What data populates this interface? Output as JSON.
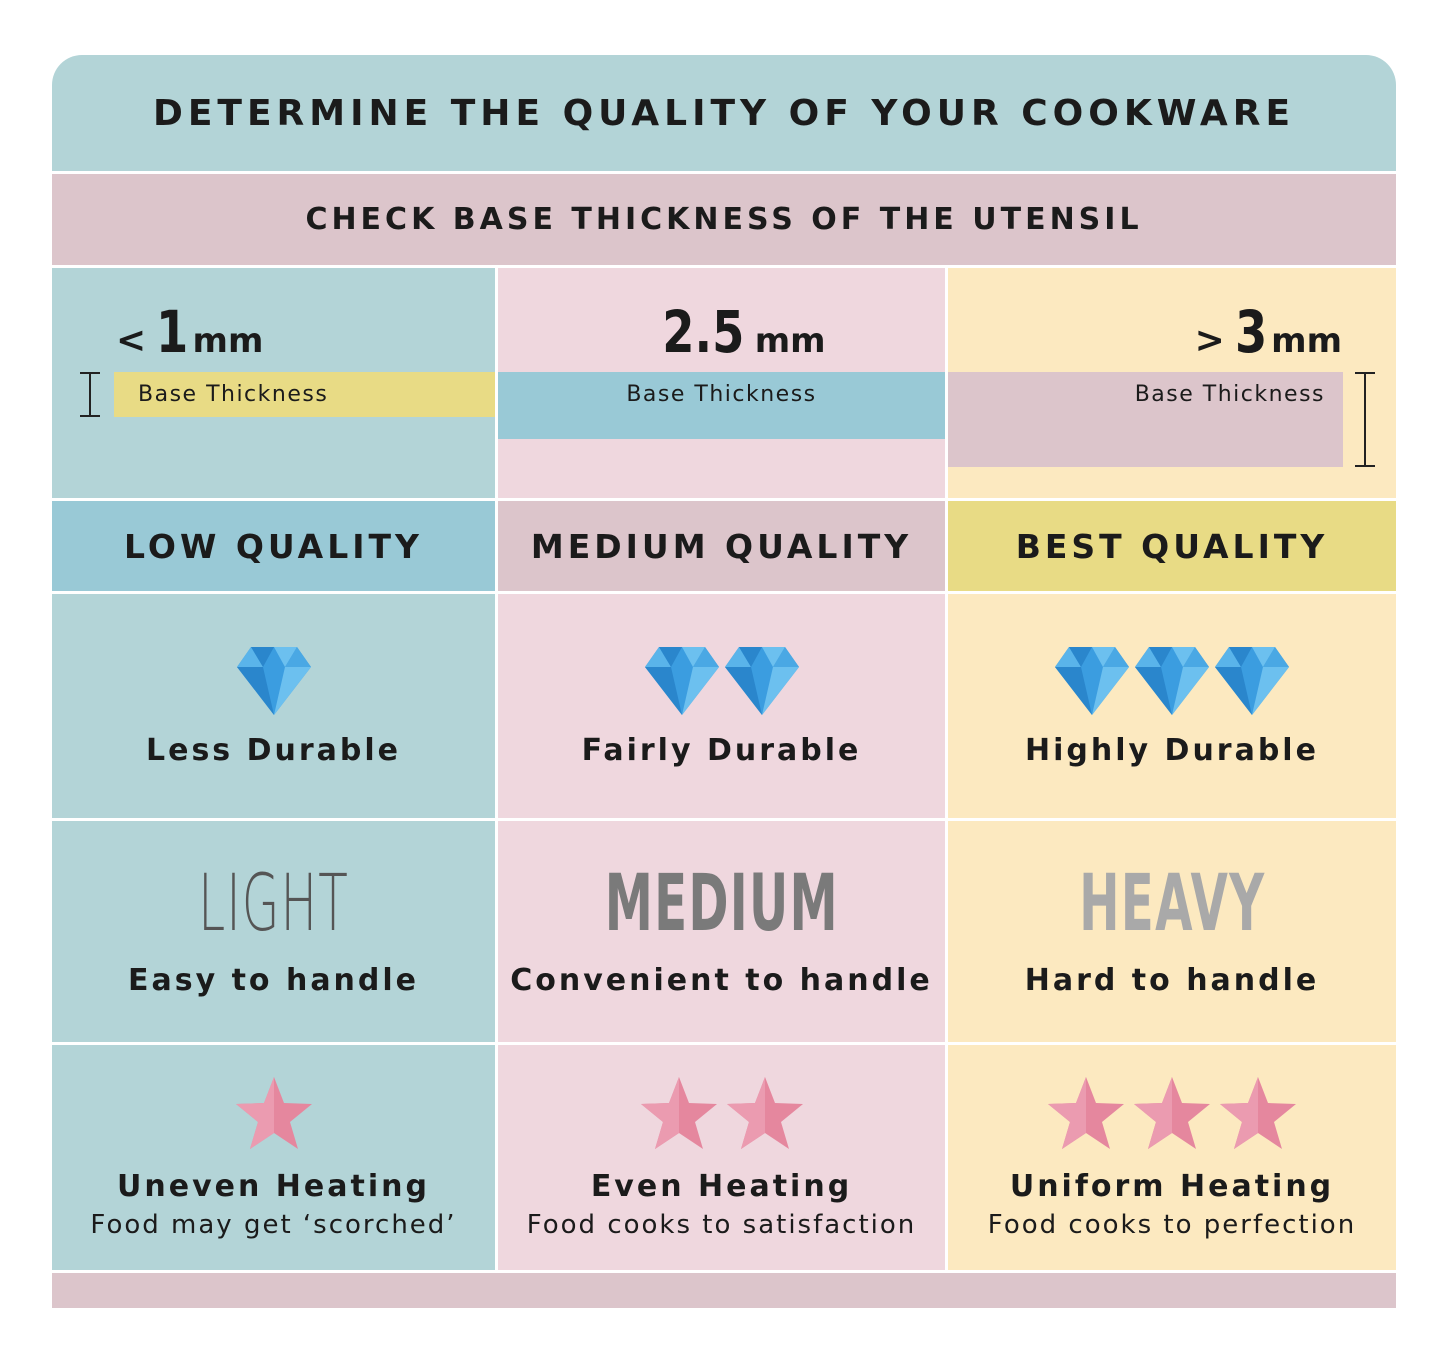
{
  "title": "DETERMINE THE QUALITY OF YOUR COOKWARE",
  "subtitle": "CHECK BASE THICKNESS OF THE UTENSIL",
  "base_label": "Base Thickness",
  "colors": {
    "teal": "#b3d4d7",
    "pink": "#efd7de",
    "cream": "#fce9c0",
    "header_pink": "#dcc5cb",
    "low_header": "#99c9d6",
    "best_header": "#e8db85",
    "diamond": "#3b9de0",
    "star": "#e5879e"
  },
  "columns": [
    {
      "prefix": "<",
      "value": "1",
      "unit": "mm",
      "quality": "LOW QUALITY",
      "diamonds": 1,
      "durability": "Less Durable",
      "weight": "LIGHT",
      "handling": "Easy to handle",
      "stars": 1,
      "heating": "Uneven Heating",
      "heating_note": "Food may get ‘scorched’"
    },
    {
      "prefix": "",
      "value": "2.5",
      "unit": "mm",
      "quality": "MEDIUM QUALITY",
      "diamonds": 2,
      "durability": "Fairly Durable",
      "weight": "MEDIUM",
      "handling": "Convenient to handle",
      "stars": 2,
      "heating": "Even Heating",
      "heating_note": "Food cooks to satisfaction"
    },
    {
      "prefix": ">",
      "value": "3",
      "unit": "mm",
      "quality": "BEST QUALITY",
      "diamonds": 3,
      "durability": "Highly Durable",
      "weight": "HEAVY",
      "handling": "Hard to handle",
      "stars": 3,
      "heating": "Uniform Heating",
      "heating_note": "Food cooks to perfection"
    }
  ]
}
